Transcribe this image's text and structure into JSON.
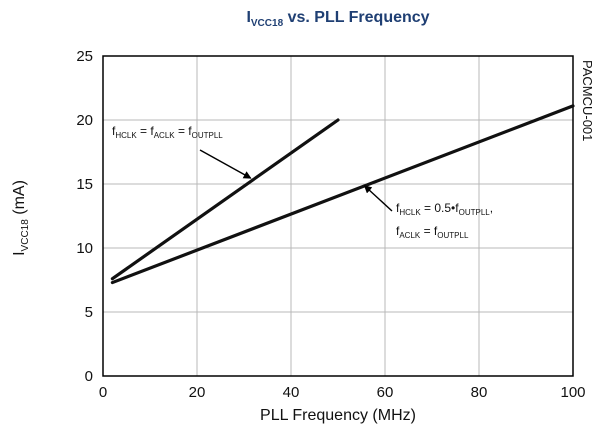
{
  "chart_data": {
    "type": "line",
    "title": {
      "main": "I",
      "main_sub": "VCC18",
      "rest": " vs. PLL Frequency"
    },
    "xlabel": "PLL Frequency (MHz)",
    "ylabel": {
      "main": "I",
      "sub": "VCC18",
      "rest": " (mA)"
    },
    "xlim": [
      0,
      100
    ],
    "ylim": [
      0,
      25
    ],
    "xticks": [
      "0",
      "20",
      "40",
      "60",
      "80",
      "100"
    ],
    "yticks": [
      "0",
      "5",
      "10",
      "15",
      "20",
      "25"
    ],
    "grid": true,
    "side_label": "PACMCU-001",
    "series": [
      {
        "x": [
          2,
          50
        ],
        "y": [
          7.6,
          20.0
        ]
      },
      {
        "x": [
          2,
          100
        ],
        "y": [
          7.3,
          21.1
        ]
      }
    ],
    "annotations": [
      {
        "parts": [
          {
            "t": "f",
            "sub": false
          },
          {
            "t": "HCLK",
            "sub": true
          },
          {
            "t": " = f",
            "sub": false
          },
          {
            "t": "ACLK",
            "sub": true
          },
          {
            "t": " = f",
            "sub": false
          },
          {
            "t": "OUTPLL",
            "sub": true
          }
        ],
        "arrow_to": [
          31,
          15.3
        ]
      },
      {
        "parts": [
          {
            "t": "f",
            "sub": false
          },
          {
            "t": "HCLK",
            "sub": true
          },
          {
            "t": " = 0.5•f",
            "sub": false
          },
          {
            "t": "OUTPLL",
            "sub": true
          },
          {
            "t": ",",
            "sub": false
          }
        ],
        "parts_line2": [
          {
            "t": "f",
            "sub": false
          },
          {
            "t": "ACLK",
            "sub": true
          },
          {
            "t": " = f",
            "sub": false
          },
          {
            "t": "OUTPLL",
            "sub": true
          }
        ],
        "arrow_to": [
          55,
          15.1
        ]
      }
    ]
  }
}
